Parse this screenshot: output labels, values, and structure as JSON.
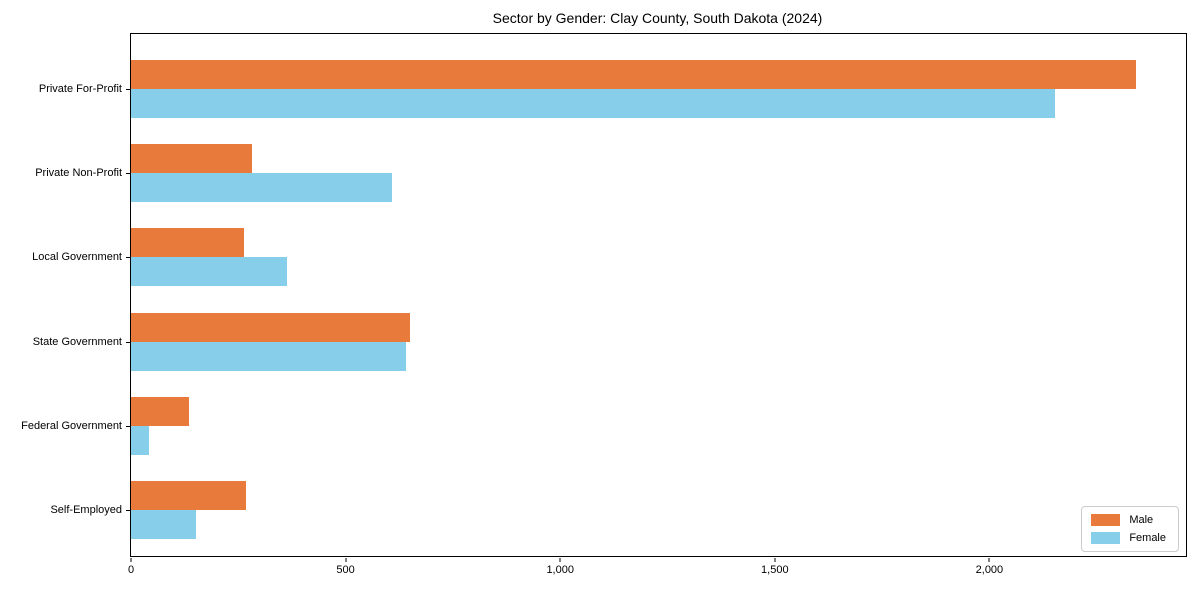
{
  "figure": {
    "background": "#ffffff",
    "text_color": "#000000",
    "axis_color": "#000000",
    "legend_border_color": "#cccccc"
  },
  "chart_data": {
    "type": "bar",
    "orientation": "horizontal",
    "title": "Sector by Gender: Clay County, South Dakota (2024)",
    "xlabel": "",
    "ylabel": "",
    "categories": [
      "Private For-Profit",
      "Private Non-Profit",
      "Local Government",
      "State Government",
      "Federal Government",
      "Self-Employed"
    ],
    "series": [
      {
        "name": "Male",
        "color": "#E87B3C",
        "values": [
          2341,
          281,
          264,
          649,
          135,
          267
        ]
      },
      {
        "name": "Female",
        "color": "#87CEEB",
        "values": [
          2153,
          609,
          363,
          640,
          43,
          151
        ]
      }
    ],
    "xlim": [
      0,
      2458
    ],
    "xticks": [
      0,
      500,
      1000,
      1500,
      2000
    ],
    "xtick_labels": [
      "0",
      "500",
      "1,000",
      "1,500",
      "2,000"
    ],
    "grid": false,
    "legend": {
      "position": "lower right",
      "entries": [
        "Male",
        "Female"
      ]
    }
  }
}
